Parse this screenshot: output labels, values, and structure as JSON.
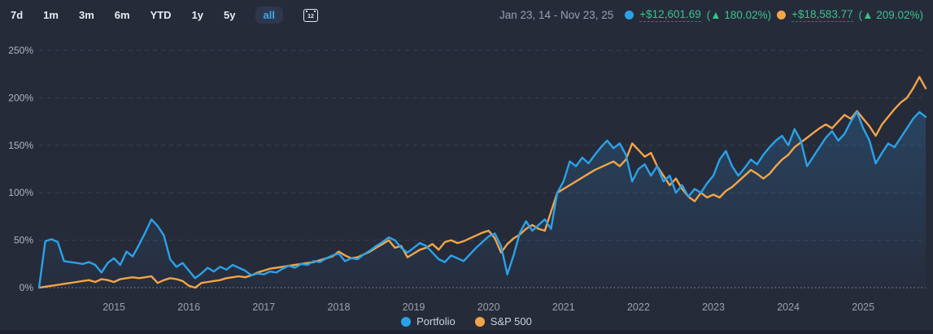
{
  "toolbar": {
    "ranges": [
      "7d",
      "1m",
      "3m",
      "6m",
      "YTD",
      "1y",
      "5y",
      "all"
    ],
    "selected_range": "all",
    "calendar_label": "12"
  },
  "summary": {
    "date_range": "Jan 23, 14 - Nov 23, 25",
    "portfolio": {
      "change": "+$12,601.69",
      "pct_text": "(▲ 180.02%)"
    },
    "sp500": {
      "change": "+$18,583.77",
      "pct_text": "(▲ 209.02%)"
    }
  },
  "colors": {
    "background": "#262b3a",
    "portfolio_line": "#2ba2e8",
    "sp500_line": "#f2a548",
    "gain_green": "#3ac28c",
    "selected_range_text": "#3fa9e8",
    "axis_text": "#9aa1ae",
    "grid_line": "#565b6e"
  },
  "chart_data": {
    "type": "line",
    "x_start": "2014-01",
    "x_end": "2025-11",
    "x_interval": "monthly",
    "x_tick_labels": [
      "2015",
      "2016",
      "2017",
      "2018",
      "2019",
      "2020",
      "2021",
      "2022",
      "2023",
      "2024",
      "2025"
    ],
    "y_unit": "%",
    "y_ticks_pct": [
      0,
      50,
      100,
      150,
      200,
      250
    ],
    "ylim": [
      0,
      250
    ],
    "grid": "dashed horizontal lines, dotted zero baseline",
    "legend_position": "bottom-center",
    "series": [
      {
        "name": "Portfolio",
        "color": "#2ba2e8",
        "area_fill": true,
        "values": [
          0,
          49,
          51,
          48,
          28,
          27,
          26,
          25,
          27,
          24,
          16,
          26,
          31,
          24,
          38,
          33,
          45,
          58,
          72,
          65,
          55,
          30,
          22,
          26,
          18,
          10,
          15,
          21,
          17,
          22,
          19,
          24,
          21,
          18,
          13,
          15,
          14,
          17,
          16,
          20,
          23,
          21,
          25,
          24,
          28,
          27,
          31,
          34,
          36,
          28,
          31,
          30,
          35,
          39,
          44,
          48,
          53,
          50,
          42,
          37,
          42,
          47,
          44,
          37,
          30,
          27,
          34,
          31,
          28,
          35,
          42,
          48,
          54,
          57,
          44,
          14,
          34,
          58,
          70,
          60,
          66,
          72,
          62,
          100,
          112,
          133,
          128,
          137,
          131,
          140,
          148,
          155,
          147,
          152,
          140,
          112,
          125,
          130,
          118,
          128,
          112,
          118,
          100,
          108,
          96,
          104,
          100,
          110,
          118,
          135,
          144,
          128,
          118,
          126,
          135,
          130,
          140,
          148,
          155,
          160,
          150,
          167,
          155,
          128,
          138,
          148,
          158,
          165,
          155,
          162,
          175,
          185,
          168,
          155,
          131,
          142,
          152,
          148,
          158,
          168,
          178,
          185,
          180
        ]
      },
      {
        "name": "S&P 500",
        "color": "#f2a548",
        "area_fill": false,
        "values": [
          0,
          1,
          2,
          3,
          4,
          5,
          6,
          7,
          8,
          6,
          9,
          8,
          6,
          9,
          10,
          11,
          10,
          11,
          12,
          5,
          8,
          10,
          9,
          7,
          2,
          0,
          5,
          6,
          7,
          8,
          10,
          11,
          12,
          11,
          13,
          16,
          18,
          20,
          21,
          22,
          23,
          24,
          25,
          26,
          27,
          29,
          31,
          33,
          38,
          34,
          31,
          32,
          35,
          38,
          42,
          46,
          50,
          42,
          44,
          32,
          36,
          40,
          42,
          46,
          40,
          48,
          50,
          47,
          49,
          52,
          55,
          58,
          60,
          52,
          37,
          46,
          52,
          56,
          62,
          66,
          62,
          60,
          80,
          100,
          104,
          108,
          112,
          116,
          120,
          124,
          127,
          130,
          133,
          128,
          135,
          152,
          145,
          138,
          142,
          128,
          118,
          108,
          115,
          104,
          96,
          91,
          100,
          95,
          98,
          95,
          102,
          106,
          112,
          118,
          124,
          120,
          115,
          120,
          128,
          135,
          140,
          148,
          153,
          158,
          163,
          168,
          172,
          168,
          175,
          182,
          178,
          186,
          178,
          170,
          160,
          172,
          180,
          188,
          195,
          200,
          210,
          222,
          210
        ]
      }
    ]
  }
}
